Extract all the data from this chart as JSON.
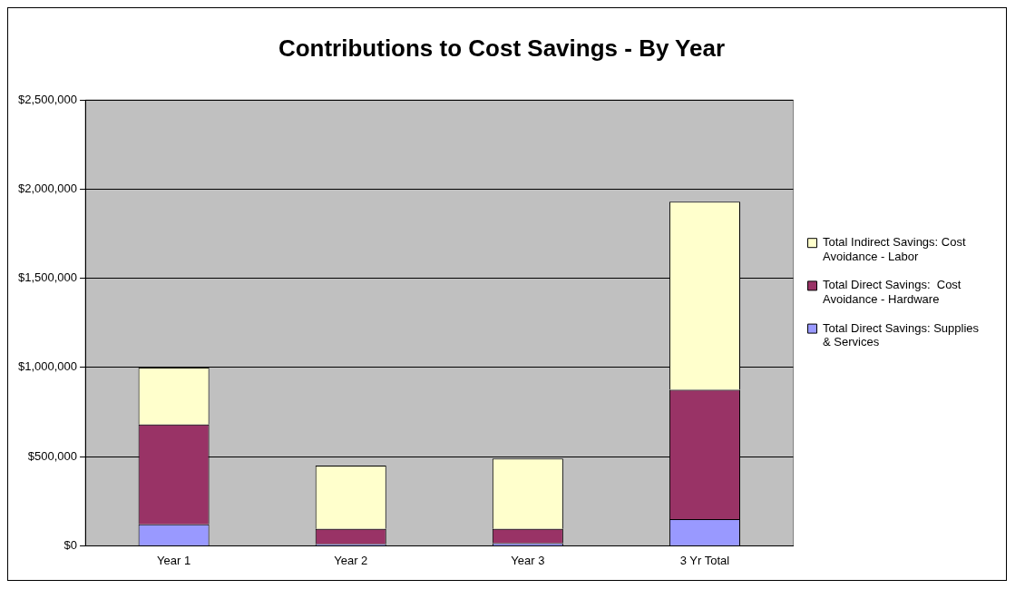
{
  "chart_data": {
    "type": "bar",
    "title": "Contributions to Cost Savings - By Year",
    "stacked": true,
    "categories": [
      "Year 1",
      "Year 2",
      "Year 3",
      "3 Yr Total"
    ],
    "series": [
      {
        "name": "Total Direct Savings: Supplies & Services",
        "color": "#9999ff",
        "values": [
          120000,
          10000,
          15000,
          150000
        ]
      },
      {
        "name": "Total Direct Savings:  Cost Avoidance - Hardware",
        "color": "#993366",
        "values": [
          560000,
          85000,
          80000,
          725000
        ]
      },
      {
        "name": "Total Indirect Savings: Cost Avoidance - Labor",
        "color": "#ffffcc",
        "values": [
          320000,
          355000,
          395000,
          1055000
        ]
      }
    ],
    "ylim": [
      0,
      2500000
    ],
    "yticks": [
      {
        "value": 0,
        "label": "$0"
      },
      {
        "value": 500000,
        "label": "$500,000"
      },
      {
        "value": 1000000,
        "label": "$1,000,000"
      },
      {
        "value": 1500000,
        "label": "$1,500,000"
      },
      {
        "value": 2000000,
        "label": "$2,000,000"
      },
      {
        "value": 2500000,
        "label": "$2,500,000"
      }
    ],
    "grid": "y",
    "legend": "right"
  }
}
